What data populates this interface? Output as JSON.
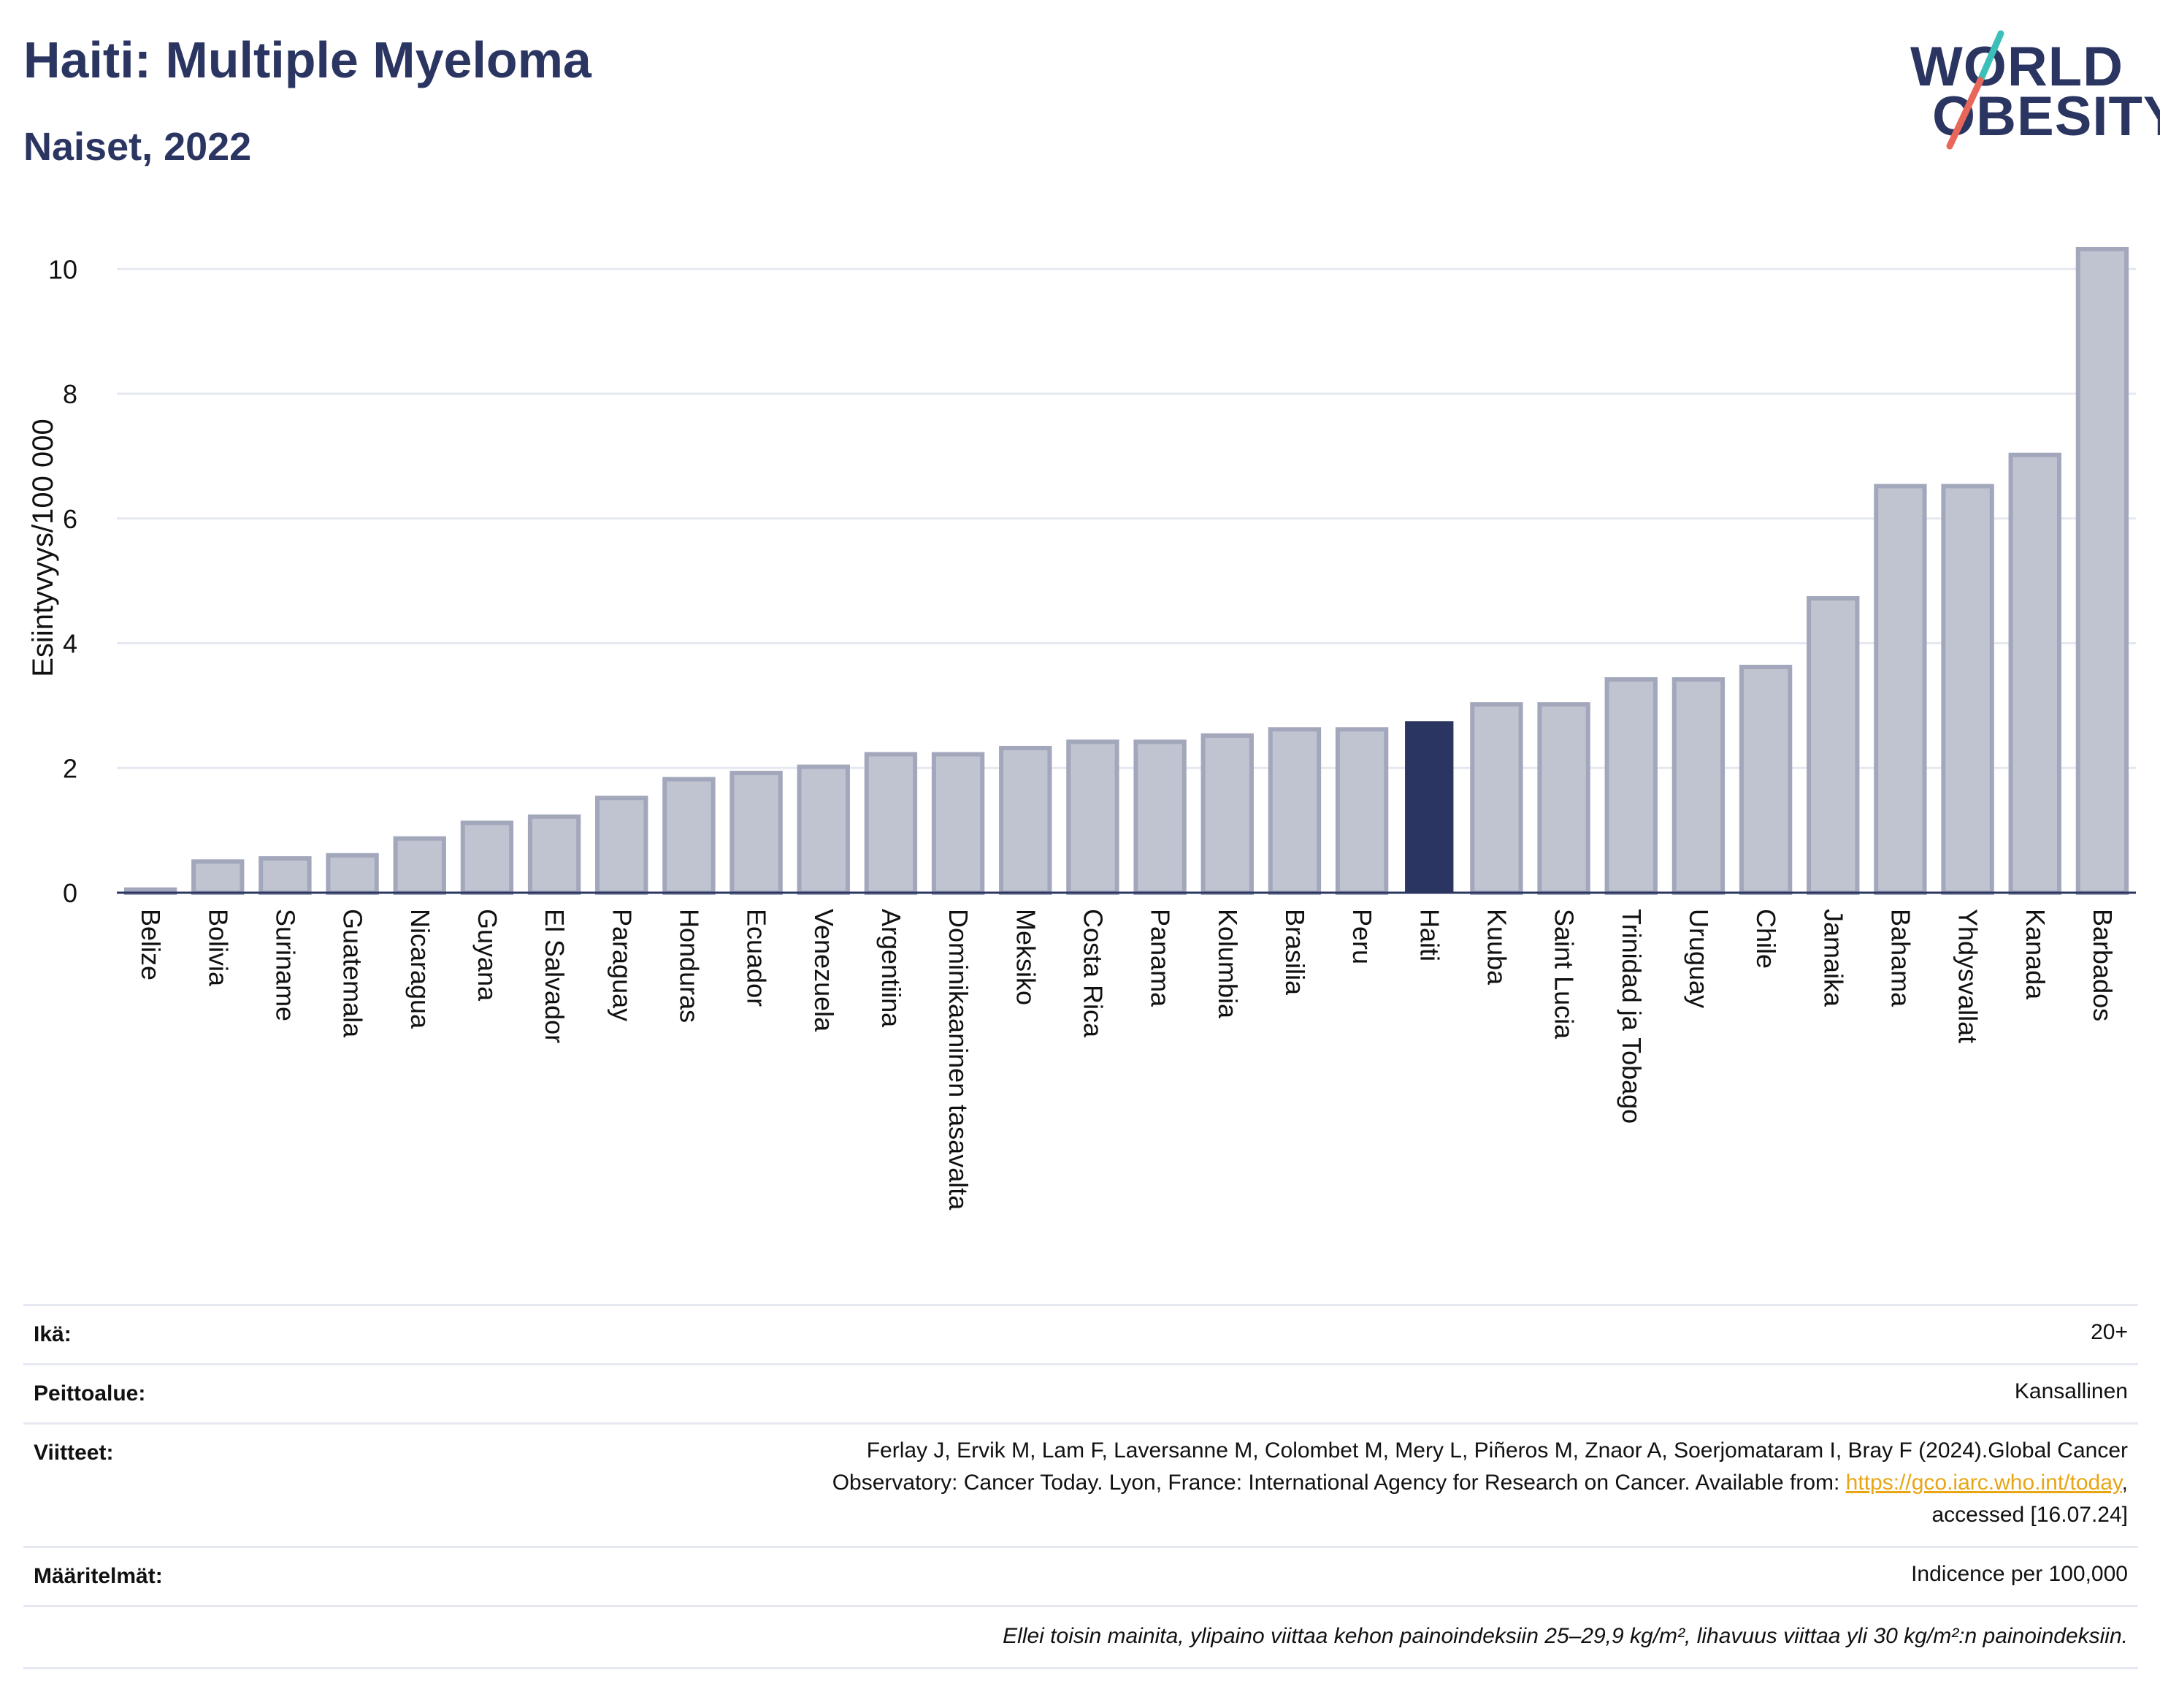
{
  "header": {
    "title": "Haiti: Multiple Myeloma",
    "subtitle": "Naiset, 2022"
  },
  "logo": {
    "line1": "WORLD",
    "line2": "OBESITY",
    "colors": {
      "text": "#2b3561",
      "slash_top": "#3bbfb8",
      "slash_bottom": "#e8675a"
    }
  },
  "chart_data": {
    "type": "bar",
    "title": "",
    "xlabel": "",
    "ylabel": "Esiintyvyys/100 000",
    "ylim": [
      0,
      10.8
    ],
    "yticks": [
      0,
      2,
      4,
      6,
      8,
      10
    ],
    "grid": true,
    "highlight": "Haiti",
    "colors": {
      "bar": "#c0c4d1",
      "bar_edge": "#a2a7bb",
      "highlight": "#2b3561",
      "grid": "#e5e8f0",
      "axis": "#2b3561"
    },
    "categories": [
      "Belize",
      "Bolivia",
      "Suriname",
      "Guatemala",
      "Nicaragua",
      "Guyana",
      "El Salvador",
      "Paraguay",
      "Honduras",
      "Ecuador",
      "Venezuela",
      "Argentiina",
      "Dominikaaninen tasavalta",
      "Meksiko",
      "Costa Rica",
      "Panama",
      "Kolumbia",
      "Brasilia",
      "Peru",
      "Haiti",
      "Kuuba",
      "Saint Lucia",
      "Trinidad ja Tobago",
      "Uruguay",
      "Chile",
      "Jamaika",
      "Bahama",
      "Yhdysvallat",
      "Kanada",
      "Barbados"
    ],
    "values": [
      0.05,
      0.5,
      0.55,
      0.6,
      0.87,
      1.12,
      1.22,
      1.52,
      1.82,
      1.92,
      2.02,
      2.22,
      2.22,
      2.32,
      2.42,
      2.42,
      2.52,
      2.62,
      2.62,
      2.75,
      3.02,
      3.02,
      3.42,
      3.42,
      3.62,
      4.72,
      6.52,
      6.52,
      7.02,
      10.32
    ]
  },
  "meta": {
    "age_key": "Ikä:",
    "age_val": "20+",
    "coverage_key": "Peittoalue:",
    "coverage_val": "Kansallinen",
    "refs_key": "Viitteet:",
    "refs_line1": "Ferlay J, Ervik M, Lam F, Laversanne M, Colombet M, Mery L, Piñeros M, Znaor A, Soerjomataram I, Bray F (2024).Global Cancer",
    "refs_line2": "Observatory: Cancer Today. Lyon, France: International Agency for Research on Cancer. Available from: ",
    "refs_link": "https://gco.iarc.who.int/today",
    "refs_line2_end": ",",
    "refs_line3": "accessed [16.07.24]",
    "def_key": "Määritelmät:",
    "def_val": "Indicence per 100,000",
    "note": "Ellei toisin mainita, ylipaino viittaa kehon painoindeksiin 25–29,9 kg/m², lihavuus viittaa yli 30 kg/m²:n painoindeksiin."
  }
}
